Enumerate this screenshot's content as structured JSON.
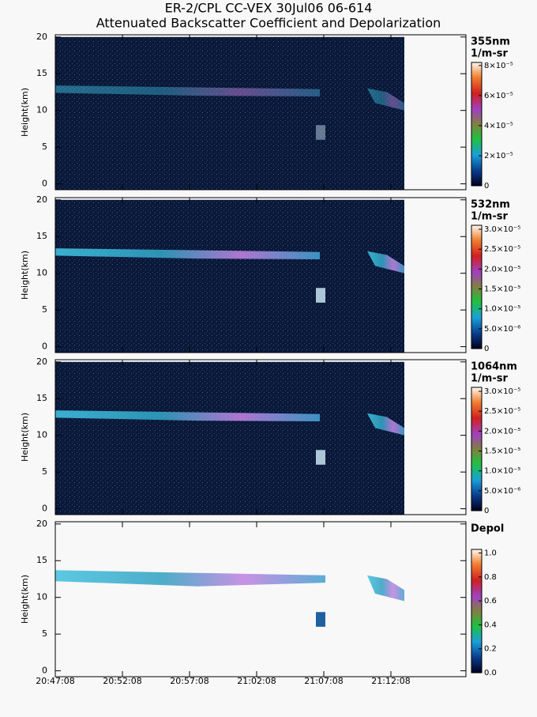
{
  "title": [
    "ER-2/CPL CC-VEX 30Jul06 06-614",
    "Attenuated Backscatter Coefficient and Depolarization"
  ],
  "xtick_labels": [
    "20:47:08",
    "20:52:08",
    "20:57:08",
    "21:02:08",
    "21:07:08",
    "21:12:08"
  ],
  "chart_data": [
    {
      "type": "heatmap",
      "colorbar_title": "355nm",
      "units": "1/m-sr",
      "ylabel": "Height(km)",
      "ylim": [
        -0.8,
        20.3
      ],
      "yticks": [
        0,
        5,
        10,
        15,
        20
      ],
      "clim": [
        0,
        8.2e-05
      ],
      "cticks": [
        0,
        {
          "value": 2e-05,
          "label": "2×10⁻⁵"
        },
        {
          "value": 4e-05,
          "label": "4×10⁻⁵"
        },
        {
          "value": 6e-05,
          "label": "6×10⁻⁵"
        },
        {
          "value": 8e-05,
          "label": "8×10⁻⁵"
        }
      ]
    },
    {
      "type": "heatmap",
      "colorbar_title": "532nm",
      "units": "1/m-sr",
      "ylabel": "Height(km)",
      "ylim": [
        -0.8,
        20.3
      ],
      "yticks": [
        0,
        5,
        10,
        15,
        20
      ],
      "clim": [
        0,
        3.1e-05
      ],
      "cticks": [
        0,
        {
          "value": 5e-06,
          "label": "5.0×10⁻⁶"
        },
        {
          "value": 1e-05,
          "label": "1.0×10⁻⁵"
        },
        {
          "value": 1.5e-05,
          "label": "1.5×10⁻⁵"
        },
        {
          "value": 2e-05,
          "label": "2.0×10⁻⁵"
        },
        {
          "value": 2.5e-05,
          "label": "2.5×10⁻⁵"
        },
        {
          "value": 3e-05,
          "label": "3.0×10⁻⁵"
        }
      ]
    },
    {
      "type": "heatmap",
      "colorbar_title": "1064nm",
      "units": "1/m-sr",
      "ylabel": "Height(km)",
      "ylim": [
        -0.8,
        20.3
      ],
      "yticks": [
        0,
        5,
        10,
        15,
        20
      ],
      "clim": [
        0,
        3.1e-05
      ],
      "cticks": [
        0,
        {
          "value": 5e-06,
          "label": "5.0×10⁻⁶"
        },
        {
          "value": 1e-05,
          "label": "1.0×10⁻⁵"
        },
        {
          "value": 1.5e-05,
          "label": "1.5×10⁻⁵"
        },
        {
          "value": 2e-05,
          "label": "2.0×10⁻⁵"
        },
        {
          "value": 2.5e-05,
          "label": "2.5×10⁻⁵"
        },
        {
          "value": 3e-05,
          "label": "3.0×10⁻⁵"
        }
      ]
    },
    {
      "type": "heatmap",
      "colorbar_title": "Depol",
      "ylabel": "Height(km)",
      "ylim": [
        -0.8,
        20.3
      ],
      "yticks": [
        0,
        5,
        10,
        15,
        20
      ],
      "clim": [
        0,
        1.03
      ],
      "cticks": [
        {
          "value": 0,
          "label": "0.0"
        },
        0.2,
        0.4,
        0.6,
        0.8,
        {
          "value": 1,
          "label": "1.0"
        }
      ]
    }
  ]
}
